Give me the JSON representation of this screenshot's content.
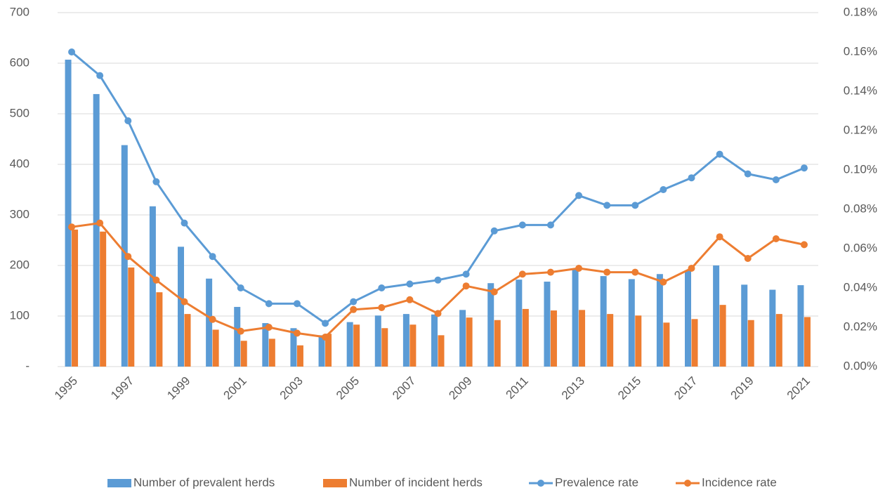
{
  "chart_data": {
    "type": "combo",
    "categories": [
      "1995",
      null,
      "1997",
      null,
      "1999",
      null,
      "2001",
      null,
      "2003",
      null,
      "2005",
      null,
      "2007",
      null,
      "2009",
      null,
      "2011",
      null,
      "2013",
      null,
      "2015",
      null,
      "2017",
      null,
      "2019",
      null,
      "2021"
    ],
    "series": [
      {
        "name": "Number of prevalent herds",
        "type": "bar",
        "color": "#5b9bd5",
        "values": [
          607,
          539,
          438,
          317,
          237,
          174,
          118,
          86,
          76,
          62,
          88,
          101,
          104,
          103,
          112,
          165,
          172,
          168,
          194,
          179,
          173,
          183,
          190,
          200,
          162,
          152,
          161
        ]
      },
      {
        "name": "Number of incident herds",
        "type": "bar",
        "color": "#ed7d31",
        "values": [
          271,
          267,
          196,
          147,
          104,
          73,
          51,
          55,
          42,
          65,
          83,
          76,
          83,
          62,
          97,
          92,
          114,
          111,
          112,
          104,
          101,
          87,
          94,
          122,
          92,
          104,
          98
        ]
      },
      {
        "name": "Prevalence rate",
        "type": "line",
        "axis": "y2",
        "color": "#5b9bd5",
        "values": [
          0.16,
          0.148,
          0.125,
          0.094,
          0.073,
          0.056,
          0.04,
          0.032,
          0.032,
          0.022,
          0.033,
          0.04,
          0.042,
          0.044,
          0.047,
          0.069,
          0.072,
          0.072,
          0.087,
          0.082,
          0.082,
          0.09,
          0.096,
          0.108,
          0.098,
          0.095,
          0.101
        ]
      },
      {
        "name": "Incidence rate",
        "type": "line",
        "axis": "y2",
        "color": "#ed7d31",
        "values": [
          0.071,
          0.073,
          0.056,
          0.044,
          0.033,
          0.024,
          0.018,
          0.02,
          0.017,
          0.015,
          0.029,
          0.03,
          0.034,
          0.027,
          0.041,
          0.038,
          0.047,
          0.048,
          0.05,
          0.048,
          0.048,
          0.043,
          0.05,
          0.066,
          0.055,
          0.065,
          0.062
        ]
      }
    ],
    "ylim": [
      0,
      700
    ],
    "yticks": [
      {
        "value": 0,
        "label": "-"
      },
      100,
      200,
      300,
      400,
      500,
      600,
      700
    ],
    "y2lim": [
      0,
      0.18
    ],
    "y2ticks": [
      {
        "value": 0,
        "label": "0.00%"
      },
      {
        "value": 0.02,
        "label": "0.02%"
      },
      {
        "value": 0.04,
        "label": "0.04%"
      },
      {
        "value": 0.06,
        "label": "0.06%"
      },
      {
        "value": 0.08,
        "label": "0.08%"
      },
      {
        "value": 0.1,
        "label": "0.10%"
      },
      {
        "value": 0.12,
        "label": "0.12%"
      },
      {
        "value": 0.14,
        "label": "0.14%"
      },
      {
        "value": 0.16,
        "label": "0.16%"
      },
      {
        "value": 0.18,
        "label": "0.18%"
      }
    ],
    "grid": true,
    "legend": "bottom"
  }
}
